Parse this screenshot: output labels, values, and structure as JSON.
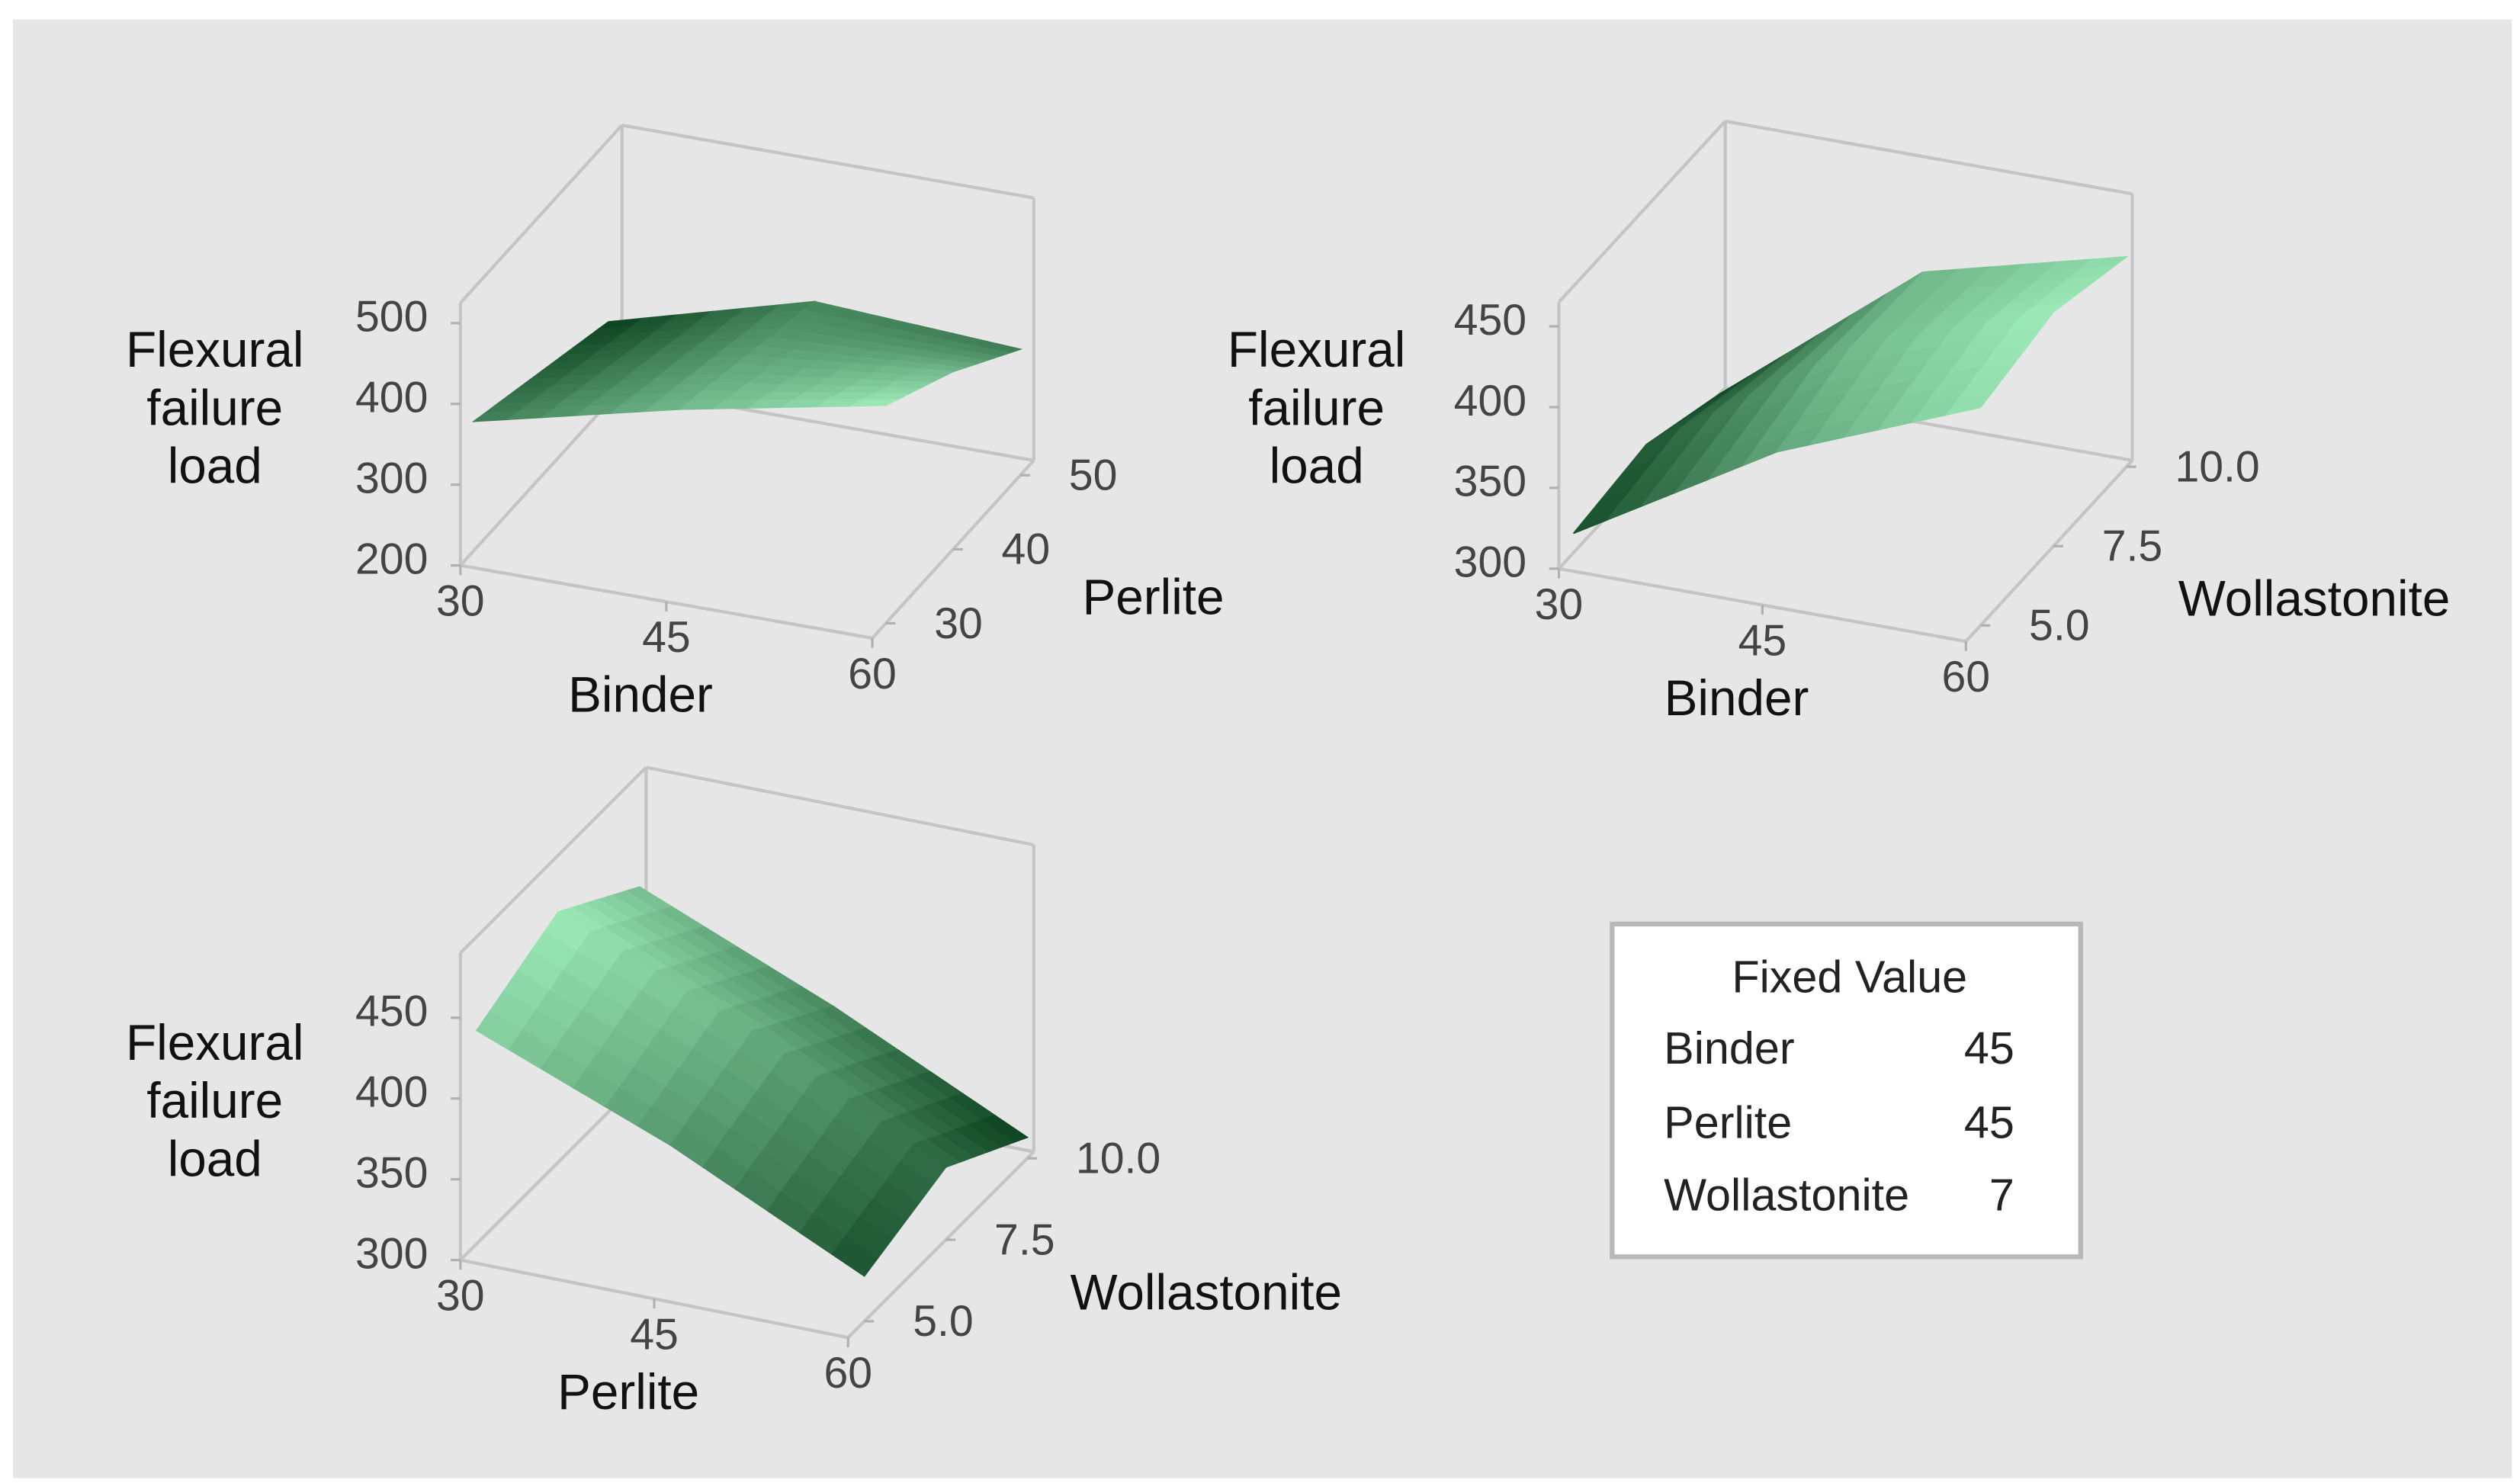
{
  "chart_data": [
    {
      "type": "surface",
      "xlabel": "Binder",
      "ylabel": "Perlite",
      "zlabel": "Flexural failure load",
      "x": [
        30,
        45,
        60
      ],
      "y": [
        30,
        40,
        50
      ],
      "z": [
        [
          360,
          330,
          300
        ],
        [
          420,
          395,
          370
        ],
        [
          470,
          420,
          356
        ]
      ],
      "xlim": [
        30,
        60
      ],
      "ylim": [
        28,
        52
      ],
      "zlim": [
        200,
        525
      ],
      "xticks": [
        30,
        45,
        60
      ],
      "yticks": [
        30,
        40,
        50
      ],
      "zticks": [
        200,
        300,
        400,
        500
      ]
    },
    {
      "type": "surface",
      "xlabel": "Binder",
      "ylabel": "Wollastonite",
      "zlabel": "Flexural failure load",
      "x": [
        30,
        45,
        60
      ],
      "y": [
        5,
        7.5,
        10
      ],
      "z": [
        [
          312,
          318,
          300
        ],
        [
          385,
          400,
          398
        ],
        [
          435,
          445,
          430
        ]
      ],
      "xlim": [
        30,
        60
      ],
      "ylim": [
        4.5,
        10.2
      ],
      "zlim": [
        300,
        465
      ],
      "xticks": [
        30,
        45,
        60
      ],
      "yticks": [
        {
          "value": 5,
          "label": "5.0"
        },
        7.5,
        {
          "value": 10,
          "label": "10.0"
        }
      ],
      "zticks": [
        300,
        350,
        400,
        450
      ]
    },
    {
      "type": "surface",
      "xlabel": "Perlite",
      "ylabel": "Wollastonite",
      "zlabel": "Flexural failure load",
      "x": [
        30,
        45,
        60
      ],
      "y": [
        5,
        7.5,
        10
      ],
      "z": [
        [
          432,
          455,
          420
        ],
        [
          385,
          405,
          370
        ],
        [
          328,
          345,
          313
        ]
      ],
      "xlim": [
        30,
        60
      ],
      "ylim": [
        4.5,
        10.2
      ],
      "zlim": [
        300,
        490
      ],
      "xticks": [
        30,
        45,
        60
      ],
      "yticks": [
        {
          "value": 5,
          "label": "5.0"
        },
        7.5,
        {
          "value": 10,
          "label": "10.0"
        }
      ],
      "zticks": [
        300,
        350,
        400,
        450
      ]
    }
  ],
  "fixed_value": {
    "title": "Fixed Value",
    "rows": [
      [
        "Binder",
        45
      ],
      [
        "Perlite",
        45
      ],
      [
        "Wollastonite",
        7
      ]
    ]
  }
}
